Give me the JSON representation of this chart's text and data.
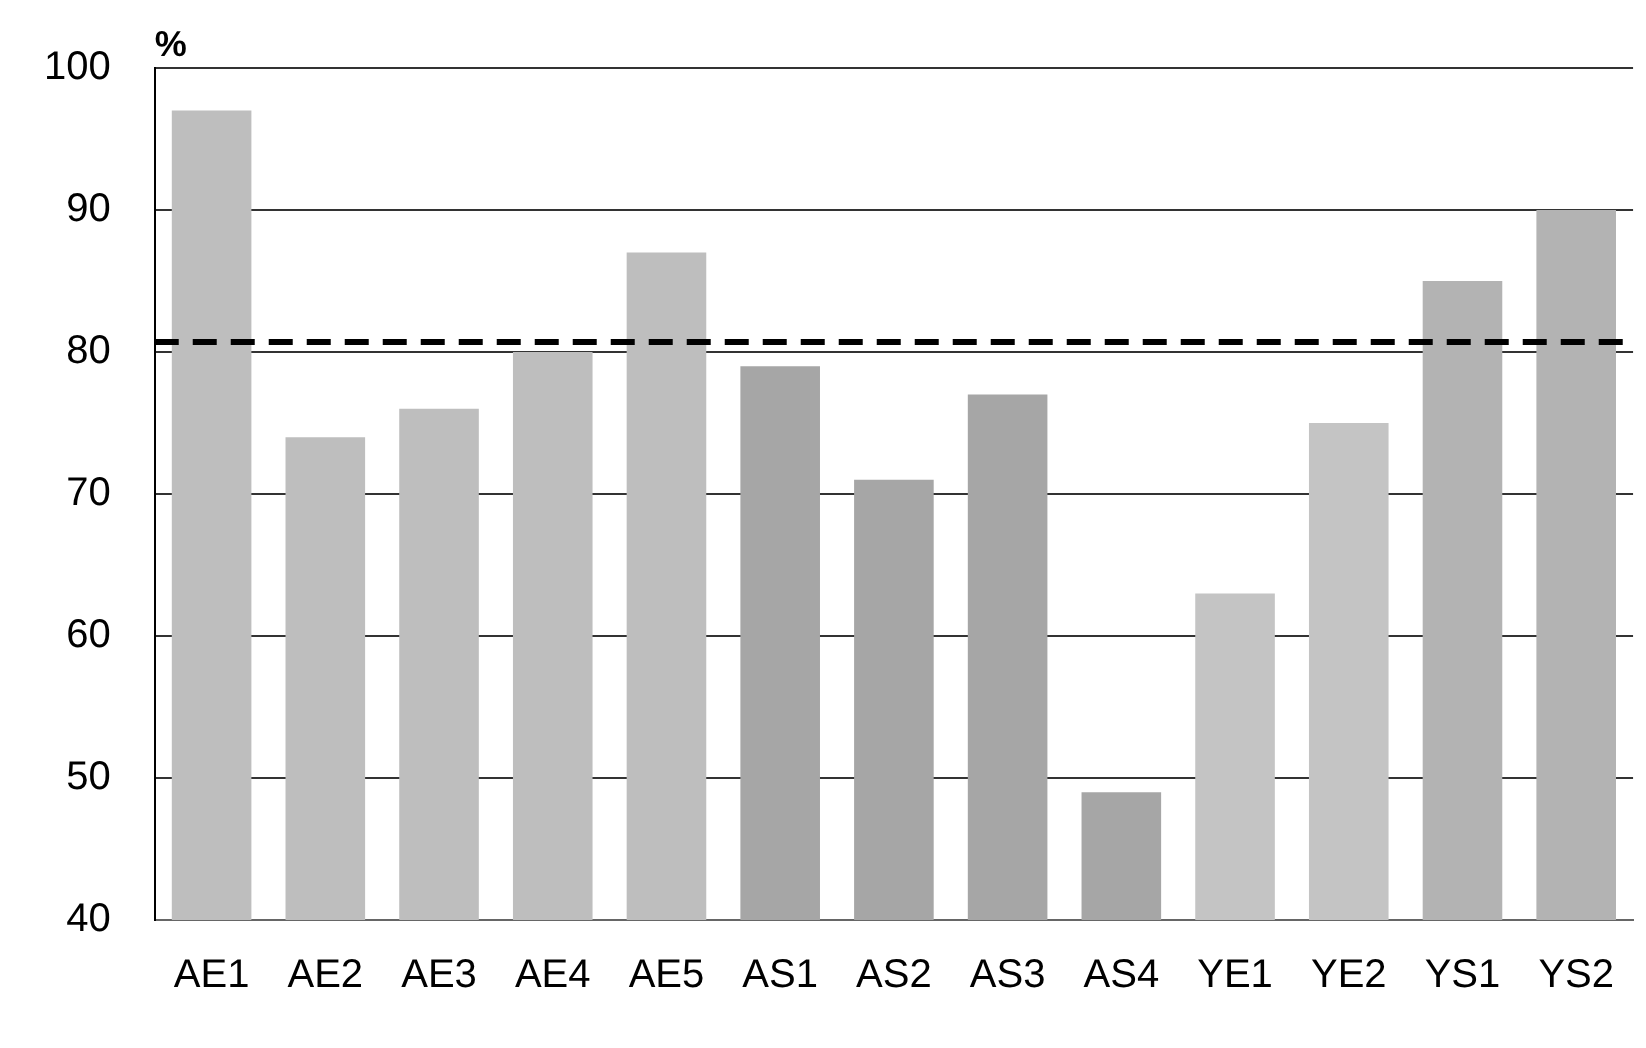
{
  "chart_data": {
    "type": "bar",
    "ylabel": "%",
    "categories": [
      "AE1",
      "AE2",
      "AE3",
      "AE4",
      "AE5",
      "AS1",
      "AS2",
      "AS3",
      "AS4",
      "YE1",
      "YE2",
      "YS1",
      "YS2"
    ],
    "values": [
      97,
      74,
      76,
      80,
      87,
      79,
      71,
      77,
      49,
      63,
      75,
      85,
      90
    ],
    "colors": [
      "#bebebe",
      "#bebebe",
      "#bebebe",
      "#bebebe",
      "#bebebe",
      "#a6a6a6",
      "#a6a6a6",
      "#a6a6a6",
      "#a6a6a6",
      "#c4c4c4",
      "#c4c4c4",
      "#b3b3b3",
      "#b3b3b3"
    ],
    "ylim": [
      40,
      100
    ],
    "yticks": [
      40,
      50,
      60,
      70,
      80,
      90,
      100
    ],
    "grid": "y",
    "ref_lines": [
      {
        "axis": "y",
        "value": 80.7,
        "color": "#000000",
        "line_style": "dashed"
      }
    ]
  }
}
